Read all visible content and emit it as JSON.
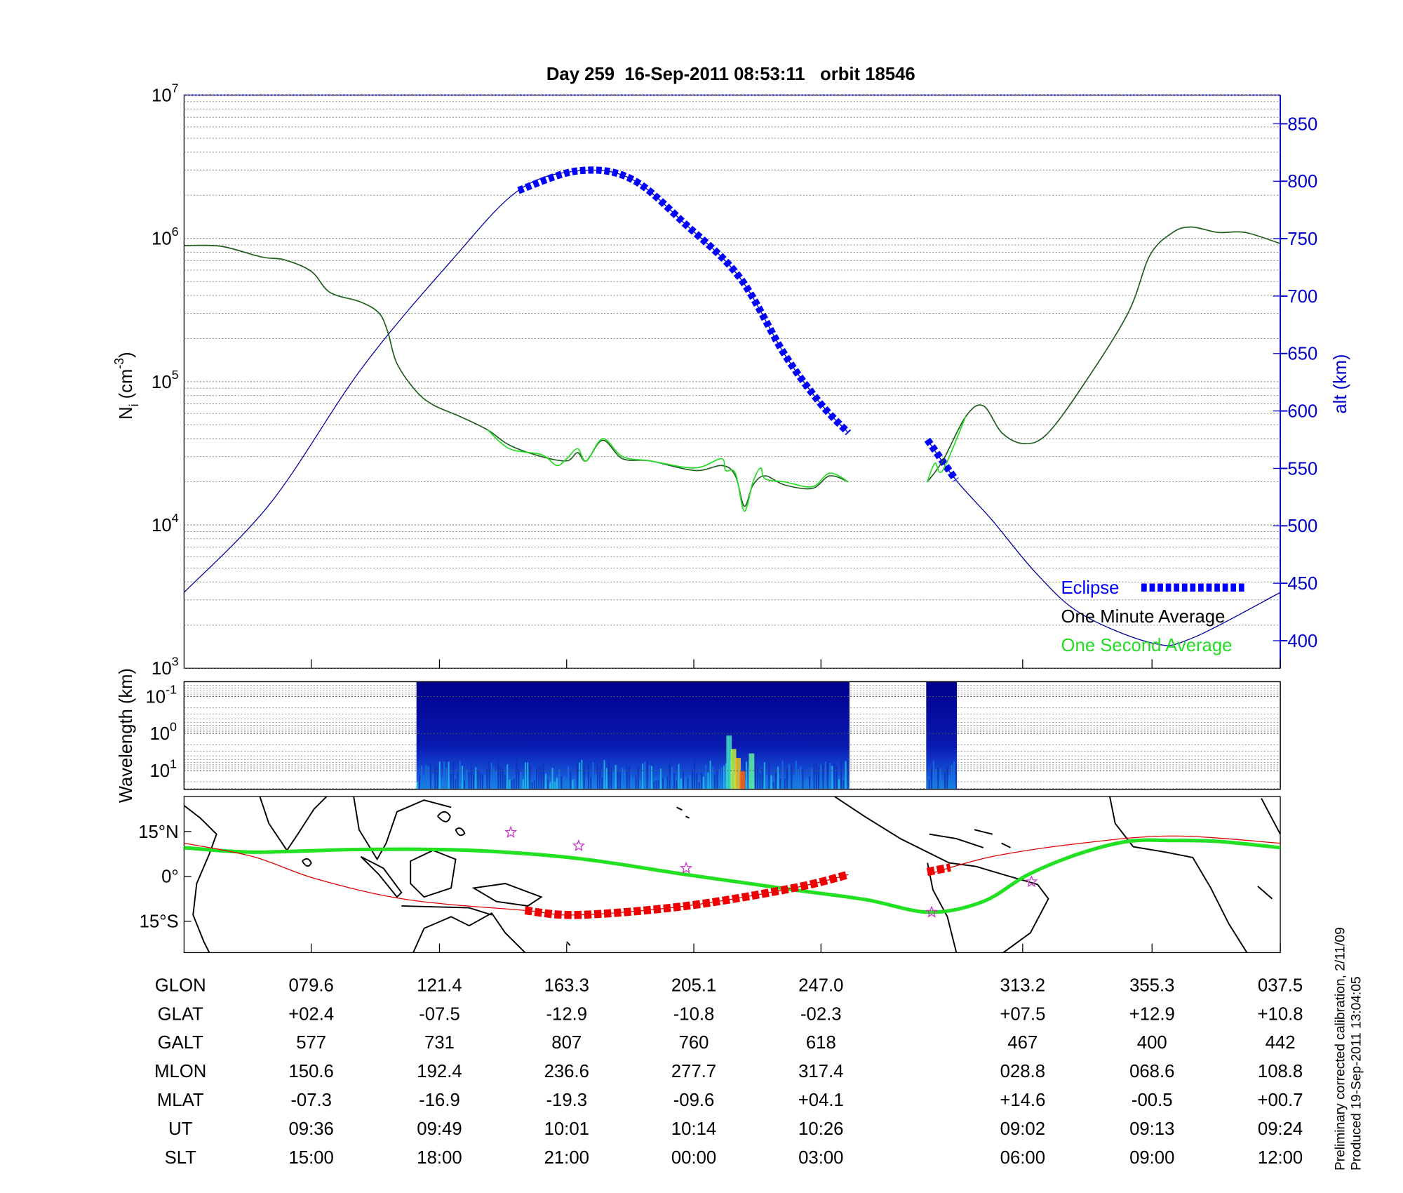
{
  "chart_data": [
    {
      "type": "line",
      "title": "Day 259  16-Sep-2011 08:53:11   orbit 18546",
      "ylabel": [
        "N",
        "i",
        " (cm",
        "-3",
        ")"
      ],
      "y2label": "alt (km)",
      "log_y": true,
      "grid": true,
      "legend": "lower right",
      "xlim": [
        0,
        100
      ],
      "xticks": [
        11.6,
        23.3,
        34.9,
        46.5,
        58.1,
        76.5,
        88.3,
        100
      ],
      "ylim": [
        1000,
        10000000
      ],
      "yticks": [
        {
          "value": 1000,
          "label": "10",
          "exponent": "3"
        },
        {
          "value": 10000,
          "label": "10",
          "exponent": "4"
        },
        {
          "value": 100000,
          "label": "10",
          "exponent": "5"
        },
        {
          "value": 1000000,
          "label": "10",
          "exponent": "6"
        },
        {
          "value": 10000000,
          "label": "10",
          "exponent": "7"
        }
      ],
      "y2lim": [
        376,
        875
      ],
      "y2ticks": [
        400,
        450,
        500,
        550,
        600,
        650,
        700,
        750,
        800,
        850
      ],
      "series": [
        {
          "color": "#0000a0",
          "axis": "y2",
          "x": [
            0,
            7.9,
            16.2,
            24.4,
            30.5,
            35.9,
            40.8,
            45.8,
            50.7,
            54.8,
            58.1,
            60.6,
            null,
            67.8,
            70.4,
            73.7,
            77.8,
            81.9,
            88.3,
            91.9,
            100
          ],
          "values": [
            442,
            520,
            637,
            731,
            792,
            809,
            802,
            762,
            716,
            649,
            606,
            581,
            null,
            575,
            540,
            505,
            458,
            423,
            398,
            402,
            442
          ]
        },
        {
          "name": "Eclipse",
          "color": "#0000ff",
          "axis": "y2",
          "style": "thick-dashed",
          "x": [
            30.5,
            35.9,
            40.8,
            45.8,
            50.7,
            54.8,
            58.1,
            60.6,
            null,
            67.8,
            70.4
          ],
          "values": [
            792,
            809,
            802,
            762,
            716,
            649,
            606,
            581,
            null,
            575,
            540
          ]
        },
        {
          "name": "One Minute Average",
          "color": "#000000",
          "line_color": "#1e5e1e",
          "x": [
            0,
            3.4,
            7.1,
            9.1,
            11.6,
            13.3,
            16.1,
            17.8,
            18.6,
            19.4,
            21.1,
            22.7,
            25.2,
            27.7,
            29.7,
            32.6,
            34.9,
            35.9,
            36.7,
            38.2,
            40.0,
            42.5,
            46.6,
            49.1,
            50.3,
            51.1,
            51.9,
            53.0,
            54.8,
            57.3,
            58.9,
            60.6,
            null,
            67.8,
            69.2,
            71.3,
            72.9,
            74.6,
            76.6,
            78.7,
            82.0,
            86.1,
            88.1,
            90.2,
            91.9,
            94.3,
            96.8,
            100
          ],
          "values": [
            890000,
            880000,
            740000,
            710000,
            590000,
            420000,
            360000,
            300000,
            220000,
            135000,
            87000,
            69000,
            57000,
            46000,
            36000,
            30000,
            28000,
            32000,
            28000,
            39000,
            29000,
            28000,
            24000,
            26000,
            22000,
            13500,
            19000,
            22000,
            19000,
            18000,
            22000,
            20000,
            null,
            20000,
            28000,
            57000,
            68000,
            44000,
            37000,
            43000,
            94000,
            300000,
            760000,
            1100000,
            1200000,
            1100000,
            1100000,
            920000
          ]
        },
        {
          "name": "One Second Average",
          "color": "#22dd22",
          "x": [
            27.7,
            29.7,
            32.6,
            34.0,
            34.9,
            35.9,
            36.7,
            38.2,
            40.0,
            42.5,
            46.6,
            49.0,
            49.4,
            50.3,
            51.1,
            51.9,
            52.6,
            53.0,
            54.8,
            57.3,
            58.9,
            60.6,
            null,
            67.8,
            68.5,
            69.2,
            71.3
          ],
          "values": [
            46000,
            34000,
            31000,
            26000,
            29000,
            34000,
            28000,
            40000,
            30000,
            28000,
            25000,
            29000,
            24000,
            23000,
            12500,
            20000,
            25000,
            21000,
            20000,
            18500,
            23000,
            20000,
            null,
            20000,
            27000,
            24000,
            57000
          ]
        }
      ]
    },
    {
      "type": "spectrogram",
      "ylabel": "Wavelength (km)",
      "log_y": true,
      "ylim": [
        32,
        0.04
      ],
      "yticks": [
        {
          "value": 0.1,
          "label": "10",
          "exponent": "-1"
        },
        {
          "value": 1,
          "label": "10",
          "exponent": "0"
        },
        {
          "value": 10,
          "label": "10",
          "exponent": "1"
        }
      ],
      "x_ranges": [
        [
          21.2,
          60.7
        ],
        [
          67.7,
          70.5
        ]
      ]
    },
    {
      "type": "map",
      "ylim": [
        -25.5,
        26.7
      ],
      "yticks": [
        {
          "value": 15,
          "label": "15°N"
        },
        {
          "value": 0,
          "label": "0°"
        },
        {
          "value": -15,
          "label": "15°S"
        }
      ],
      "series": [
        {
          "color": "#22e022",
          "x": [
            0,
            6.3,
            16.1,
            26.0,
            35.9,
            45.8,
            55.6,
            62.2,
            68.0,
            72.9,
            77.0,
            81.6,
            86.1,
            90.2,
            94.3,
            100
          ],
          "values": [
            9.6,
            8.1,
            9.0,
            8.7,
            6.0,
            0.6,
            -4.5,
            -7.8,
            -12.0,
            -8.4,
            0.6,
            7.5,
            11.7,
            12.0,
            11.7,
            9.6
          ]
        },
        {
          "color": "#dd0000",
          "x": [
            0,
            6.3,
            12.1,
            20.4,
            31.1,
            35.9,
            45.8,
            55.6,
            60.6,
            null,
            67.8,
            73.7,
            81.9,
            90.2,
            100
          ],
          "values": [
            11.1,
            6.6,
            -0.9,
            -7.8,
            -11.4,
            -12.9,
            -9.9,
            -3.9,
            0.6,
            null,
            0.6,
            6.6,
            11.1,
            13.5,
            11.1
          ]
        },
        {
          "color": "#ee0000",
          "style": "thick-dashed",
          "x": [
            31.1,
            35.9,
            45.8,
            55.6,
            60.6,
            null,
            67.8,
            69.9
          ],
          "values": [
            -11.4,
            -12.9,
            -9.9,
            -3.9,
            0.6,
            null,
            1.5,
            3.0
          ]
        }
      ],
      "markers": {
        "color": "#cc33cc",
        "x": [
          29.8,
          36.0,
          45.8,
          68.2,
          77.3
        ],
        "values": [
          14.7,
          10.2,
          2.7,
          -12.0,
          -1.8
        ]
      }
    }
  ],
  "table": {
    "rows": [
      {
        "label": "GLON",
        "values": [
          "079.6",
          "121.4",
          "163.3",
          "205.1",
          "247.0",
          "313.2",
          "355.3",
          "037.5"
        ]
      },
      {
        "label": "GLAT",
        "values": [
          "+02.4",
          "-07.5",
          "-12.9",
          "-10.8",
          "-02.3",
          "+07.5",
          "+12.9",
          "+10.8"
        ]
      },
      {
        "label": "GALT",
        "values": [
          "577",
          "731",
          "807",
          "760",
          "618",
          "467",
          "400",
          "442"
        ]
      },
      {
        "label": "MLON",
        "values": [
          "150.6",
          "192.4",
          "236.6",
          "277.7",
          "317.4",
          "028.8",
          "068.6",
          "108.8"
        ]
      },
      {
        "label": "MLAT",
        "values": [
          "-07.3",
          "-16.9",
          "-19.3",
          "-09.6",
          "+04.1",
          "+14.6",
          "-00.5",
          "+00.7"
        ]
      },
      {
        "label": "UT",
        "values": [
          "09:36",
          "09:49",
          "10:01",
          "10:14",
          "10:26",
          "09:02",
          "09:13",
          "09:24"
        ]
      },
      {
        "label": "SLT",
        "values": [
          "15:00",
          "18:00",
          "21:00",
          "00:00",
          "03:00",
          "06:00",
          "09:00",
          "12:00"
        ]
      }
    ]
  },
  "notes": [
    "Preliminary corrected calibration, 2/11/09",
    "Produced 19-Sep-2011 13:04:05"
  ]
}
